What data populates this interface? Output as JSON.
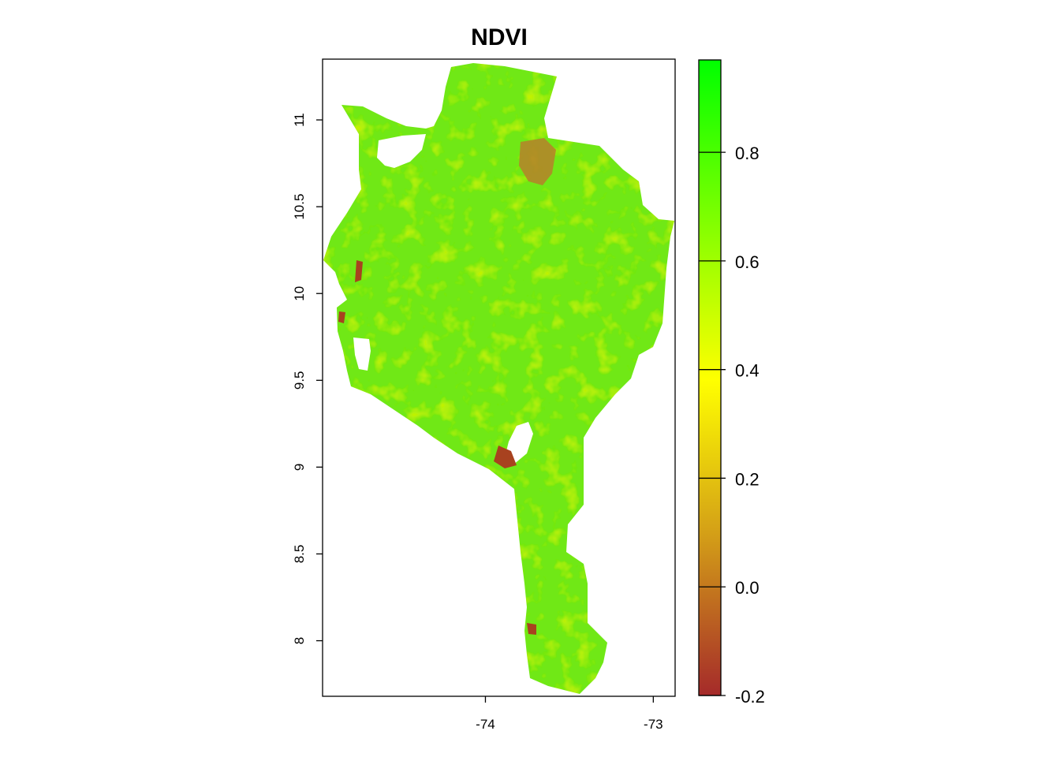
{
  "title": "NDVI",
  "map": {
    "layer": "NDVI",
    "x_ticks": [
      -74,
      -73
    ],
    "x_tick_labels": [
      "-74",
      "-73"
    ],
    "y_ticks": [
      8,
      8.5,
      9,
      9.5,
      10,
      10.5,
      11
    ],
    "y_tick_labels": [
      "8",
      "8.5",
      "9",
      "9.5",
      "10",
      "10.5",
      "11"
    ],
    "xlim": [
      -74.97,
      -72.87
    ],
    "ylim": [
      7.68,
      11.35
    ],
    "no_data_color": "#ffffff"
  },
  "legend": {
    "range": [
      -0.2,
      0.97
    ],
    "ticks": [
      -0.2,
      0.0,
      0.2,
      0.4,
      0.6,
      0.8
    ],
    "tick_labels": [
      "-0.2",
      "0.0",
      "0.2",
      "0.4",
      "0.6",
      "0.8"
    ],
    "color_stops": [
      {
        "value": -0.2,
        "color": "#a52a2a"
      },
      {
        "value": 0.1,
        "color": "#d4a017"
      },
      {
        "value": 0.38,
        "color": "#ffff00"
      },
      {
        "value": 0.97,
        "color": "#00ff00"
      }
    ]
  }
}
